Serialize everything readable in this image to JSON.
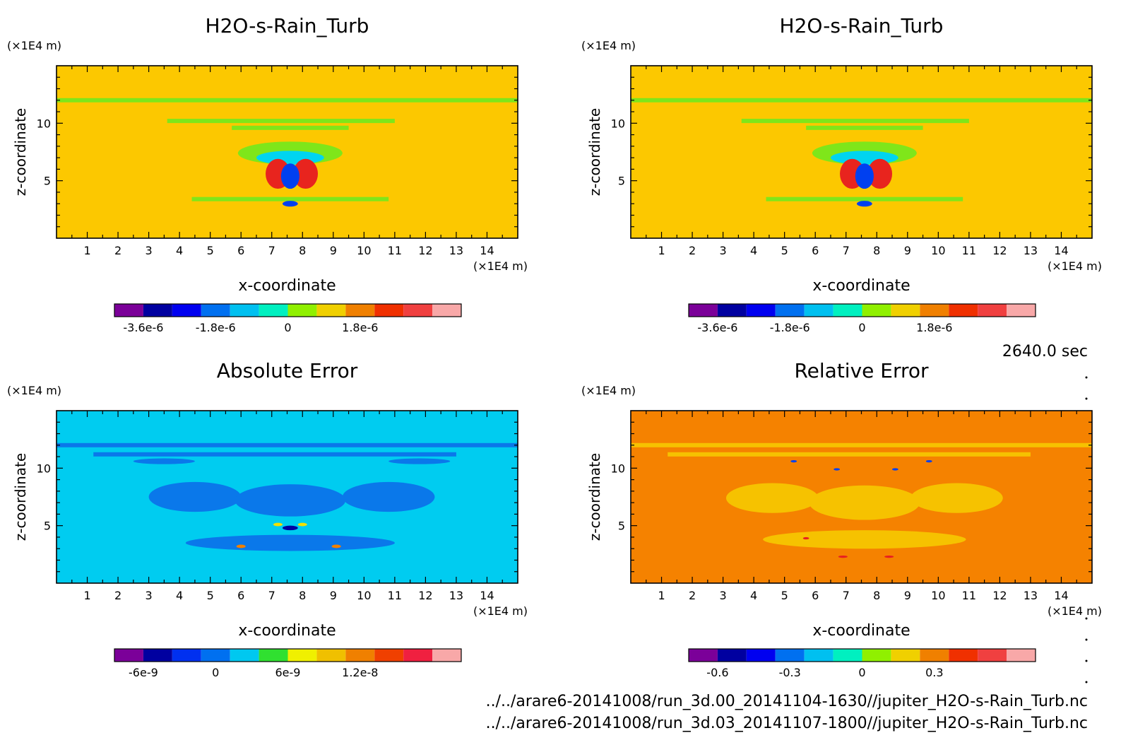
{
  "chart_data": [
    {
      "type": "heatmap",
      "title": "H2O-s-Rain_Turb",
      "xlabel": "x-coordinate",
      "ylabel": "z-coordinate",
      "x_unit": "(×1E4 m)",
      "y_unit": "(×1E4 m)",
      "xlim": [
        0,
        15
      ],
      "ylim": [
        0,
        15
      ],
      "x_ticks": [
        1,
        2,
        3,
        4,
        5,
        6,
        7,
        8,
        9,
        10,
        11,
        12,
        13,
        14
      ],
      "y_ticks": [
        5,
        10
      ],
      "background_color": "#fcc800",
      "features": [
        {
          "shape": "band",
          "z": 12.0,
          "color": "#7fe61a"
        },
        {
          "shape": "band",
          "x": [
            3.6,
            11.0
          ],
          "z": 10.2,
          "color": "#7fe61a"
        },
        {
          "shape": "band",
          "x": [
            5.7,
            9.5
          ],
          "z": 9.6,
          "color": "#7fe61a"
        },
        {
          "shape": "blob",
          "x": 7.6,
          "z": 7.4,
          "w": 3.4,
          "h": 2.0,
          "color": "#7fe61a"
        },
        {
          "shape": "blob",
          "x": 7.6,
          "z": 7.0,
          "w": 2.2,
          "h": 1.2,
          "color": "#00d4f0"
        },
        {
          "shape": "blob",
          "x": 7.2,
          "z": 5.6,
          "w": 0.8,
          "h": 2.6,
          "color": "#e8241e"
        },
        {
          "shape": "blob",
          "x": 8.1,
          "z": 5.6,
          "w": 0.8,
          "h": 2.6,
          "color": "#e8241e"
        },
        {
          "shape": "blob",
          "x": 7.6,
          "z": 5.4,
          "w": 0.6,
          "h": 2.2,
          "color": "#0040f0"
        },
        {
          "shape": "band",
          "x": [
            4.4,
            10.8
          ],
          "z": 3.4,
          "color": "#7fe61a"
        },
        {
          "shape": "blob",
          "x": 7.6,
          "z": 3.0,
          "w": 0.5,
          "h": 0.5,
          "color": "#0040f0"
        }
      ],
      "colorbar": {
        "colors": [
          "#7b0099",
          "#0000a0",
          "#0000f0",
          "#0070f0",
          "#00c0f0",
          "#00f0c0",
          "#90f000",
          "#f0d000",
          "#f08000",
          "#f03000",
          "#f04040",
          "#f8a8a8"
        ],
        "tick_labels": [
          "-3.6e-6",
          "-1.8e-6",
          "0",
          "1.8e-6"
        ]
      }
    },
    {
      "type": "heatmap",
      "title": "H2O-s-Rain_Turb",
      "xlabel": "x-coordinate",
      "ylabel": "z-coordinate",
      "x_unit": "(×1E4 m)",
      "y_unit": "(×1E4 m)",
      "xlim": [
        0,
        15
      ],
      "ylim": [
        0,
        15
      ],
      "x_ticks": [
        1,
        2,
        3,
        4,
        5,
        6,
        7,
        8,
        9,
        10,
        11,
        12,
        13,
        14
      ],
      "y_ticks": [
        5,
        10
      ],
      "background_color": "#fcc800",
      "features": [
        {
          "shape": "band",
          "z": 12.0,
          "color": "#7fe61a"
        },
        {
          "shape": "band",
          "x": [
            3.6,
            11.0
          ],
          "z": 10.2,
          "color": "#7fe61a"
        },
        {
          "shape": "band",
          "x": [
            5.7,
            9.5
          ],
          "z": 9.6,
          "color": "#7fe61a"
        },
        {
          "shape": "blob",
          "x": 7.6,
          "z": 7.4,
          "w": 3.4,
          "h": 2.0,
          "color": "#7fe61a"
        },
        {
          "shape": "blob",
          "x": 7.6,
          "z": 7.0,
          "w": 2.2,
          "h": 1.2,
          "color": "#00d4f0"
        },
        {
          "shape": "blob",
          "x": 7.2,
          "z": 5.6,
          "w": 0.8,
          "h": 2.6,
          "color": "#e8241e"
        },
        {
          "shape": "blob",
          "x": 8.1,
          "z": 5.6,
          "w": 0.8,
          "h": 2.6,
          "color": "#e8241e"
        },
        {
          "shape": "blob",
          "x": 7.6,
          "z": 5.4,
          "w": 0.6,
          "h": 2.2,
          "color": "#0040f0"
        },
        {
          "shape": "band",
          "x": [
            4.4,
            10.8
          ],
          "z": 3.4,
          "color": "#7fe61a"
        },
        {
          "shape": "blob",
          "x": 7.6,
          "z": 3.0,
          "w": 0.5,
          "h": 0.5,
          "color": "#0040f0"
        }
      ],
      "colorbar": {
        "colors": [
          "#7b0099",
          "#0000a0",
          "#0000f0",
          "#0070f0",
          "#00c0f0",
          "#00f0c0",
          "#90f000",
          "#f0d000",
          "#f08000",
          "#f03000",
          "#f04040",
          "#f8a8a8"
        ],
        "tick_labels": [
          "-3.6e-6",
          "-1.8e-6",
          "0",
          "1.8e-6"
        ]
      }
    },
    {
      "type": "heatmap",
      "title": "Absolute Error",
      "xlabel": "x-coordinate",
      "ylabel": "z-coordinate",
      "x_unit": "(×1E4 m)",
      "y_unit": "(×1E4 m)",
      "xlim": [
        0,
        15
      ],
      "ylim": [
        0,
        15
      ],
      "x_ticks": [
        1,
        2,
        3,
        4,
        5,
        6,
        7,
        8,
        9,
        10,
        11,
        12,
        13,
        14
      ],
      "y_ticks": [
        5,
        10
      ],
      "background_color": "#00ccf0",
      "features": [
        {
          "shape": "band",
          "z": 12.0,
          "color": "#0a78ea"
        },
        {
          "shape": "band",
          "x": [
            1.2,
            13.0
          ],
          "z": 11.2,
          "color": "#0a78ea"
        },
        {
          "shape": "blob",
          "x": 3.5,
          "z": 10.6,
          "w": 2.0,
          "h": 0.5,
          "color": "#0a78ea"
        },
        {
          "shape": "blob",
          "x": 11.8,
          "z": 10.6,
          "w": 2.0,
          "h": 0.5,
          "color": "#0a78ea"
        },
        {
          "shape": "blob",
          "x": 4.5,
          "z": 7.5,
          "w": 3.0,
          "h": 2.6,
          "color": "#0a78ea"
        },
        {
          "shape": "blob",
          "x": 10.8,
          "z": 7.5,
          "w": 3.0,
          "h": 2.6,
          "color": "#0a78ea"
        },
        {
          "shape": "blob",
          "x": 7.6,
          "z": 7.2,
          "w": 3.6,
          "h": 2.8,
          "color": "#0a78ea"
        },
        {
          "shape": "blob",
          "x": 7.6,
          "z": 3.5,
          "w": 6.8,
          "h": 1.4,
          "color": "#0a78ea"
        },
        {
          "shape": "blob",
          "x": 7.6,
          "z": 4.8,
          "w": 0.5,
          "h": 0.4,
          "color": "#0000a0"
        },
        {
          "shape": "blob",
          "x": 7.2,
          "z": 5.1,
          "w": 0.3,
          "h": 0.3,
          "color": "#f0e000"
        },
        {
          "shape": "blob",
          "x": 8.0,
          "z": 5.1,
          "w": 0.3,
          "h": 0.3,
          "color": "#f0e000"
        },
        {
          "shape": "blob",
          "x": 6.0,
          "z": 3.2,
          "w": 0.3,
          "h": 0.3,
          "color": "#f08000"
        },
        {
          "shape": "blob",
          "x": 9.1,
          "z": 3.2,
          "w": 0.3,
          "h": 0.3,
          "color": "#f08000"
        }
      ],
      "colorbar": {
        "colors": [
          "#7b0099",
          "#0000a0",
          "#0030f0",
          "#0070f0",
          "#00c8f0",
          "#30e030",
          "#f0f000",
          "#f0c000",
          "#f08000",
          "#f04000",
          "#f02040",
          "#f8a8a8"
        ],
        "tick_labels": [
          "-6e-9",
          "0",
          "6e-9",
          "1.2e-8"
        ]
      }
    },
    {
      "type": "heatmap",
      "title": "Relative Error",
      "xlabel": "x-coordinate",
      "ylabel": "z-coordinate",
      "x_unit": "(×1E4 m)",
      "y_unit": "(×1E4 m)",
      "xlim": [
        0,
        15
      ],
      "ylim": [
        0,
        15
      ],
      "x_ticks": [
        1,
        2,
        3,
        4,
        5,
        6,
        7,
        8,
        9,
        10,
        11,
        12,
        13,
        14
      ],
      "y_ticks": [
        5,
        10
      ],
      "background_color": "#f58200",
      "features": [
        {
          "shape": "band",
          "z": 12.0,
          "color": "#f6c200"
        },
        {
          "shape": "band",
          "x": [
            1.2,
            13.0
          ],
          "z": 11.2,
          "color": "#f6c200"
        },
        {
          "shape": "blob",
          "x": 4.6,
          "z": 7.4,
          "w": 3.0,
          "h": 2.6,
          "color": "#f6c200"
        },
        {
          "shape": "blob",
          "x": 10.6,
          "z": 7.4,
          "w": 3.0,
          "h": 2.6,
          "color": "#f6c200"
        },
        {
          "shape": "blob",
          "x": 7.6,
          "z": 7.0,
          "w": 3.6,
          "h": 3.0,
          "color": "#f6c200"
        },
        {
          "shape": "blob",
          "x": 7.6,
          "z": 3.8,
          "w": 6.6,
          "h": 1.6,
          "color": "#f6c200"
        },
        {
          "shape": "blob",
          "x": 5.3,
          "z": 10.6,
          "w": 0.2,
          "h": 0.2,
          "color": "#0040f0"
        },
        {
          "shape": "blob",
          "x": 6.7,
          "z": 9.9,
          "w": 0.2,
          "h": 0.2,
          "color": "#0040f0"
        },
        {
          "shape": "blob",
          "x": 8.6,
          "z": 9.9,
          "w": 0.2,
          "h": 0.2,
          "color": "#0040f0"
        },
        {
          "shape": "blob",
          "x": 9.7,
          "z": 10.6,
          "w": 0.2,
          "h": 0.2,
          "color": "#0040f0"
        },
        {
          "shape": "blob",
          "x": 5.7,
          "z": 3.9,
          "w": 0.2,
          "h": 0.2,
          "color": "#e82020"
        },
        {
          "shape": "blob",
          "x": 6.9,
          "z": 2.3,
          "w": 0.3,
          "h": 0.2,
          "color": "#e82020"
        },
        {
          "shape": "blob",
          "x": 8.4,
          "z": 2.3,
          "w": 0.3,
          "h": 0.2,
          "color": "#e82020"
        }
      ],
      "colorbar": {
        "colors": [
          "#7b0099",
          "#0000a0",
          "#0000f0",
          "#0070f0",
          "#00c0f0",
          "#00f0c0",
          "#90f000",
          "#f0d000",
          "#f08000",
          "#f03000",
          "#f04040",
          "#f8a8a8"
        ],
        "tick_labels": [
          "-0.6",
          "-0.3",
          "0",
          "0.3"
        ]
      }
    }
  ],
  "time_label": "2640.0 sec",
  "file_paths": [
    "../../arare6-20141008/run_3d.00_20141104-1630//jupiter_H2O-s-Rain_Turb.nc",
    "../../arare6-20141008/run_3d.03_20141107-1800//jupiter_H2O-s-Rain_Turb.nc"
  ]
}
